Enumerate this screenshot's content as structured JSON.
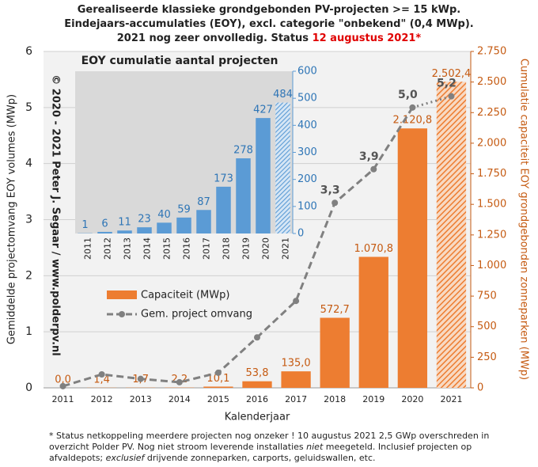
{
  "chart_data": {
    "type": "bar_line",
    "title": [
      "Gerealiseerde klassieke grondgebonden PV-projecten >= 15 kWp.",
      "Eindejaars-accumulaties (EOY), excl. categorie \"onbekend\" (0,4 MWp).",
      "2021 nog zeer onvolledig. Status "
    ],
    "title_highlight": "12 augustus 2021*",
    "title_highlight_color": "#e00000",
    "categories": [
      "2011",
      "2012",
      "2013",
      "2014",
      "2015",
      "2016",
      "2017",
      "2018",
      "2019",
      "2020",
      "2021"
    ],
    "incomplete_last": true,
    "series": [
      {
        "name": "Capaciteit (MWp)",
        "color": "#ed7d31",
        "axis": "y2",
        "kind": "bar",
        "values": [
          0,
          1.4,
          1.7,
          2.2,
          10.1,
          53.8,
          135.0,
          572.7,
          1070.8,
          2120.8,
          2502.4
        ],
        "value_labels": [
          "0,0",
          "1,4",
          "1,7",
          "2,2",
          "10,1",
          "53,8",
          "135,0",
          "572,7",
          "1.070,8",
          "2.120,8",
          "2.502,4"
        ]
      },
      {
        "name": "Gem. project omvang",
        "color": "#808080",
        "kind": "line",
        "values": [
          0.03,
          0.24,
          0.16,
          0.1,
          0.27,
          0.9,
          1.55,
          3.3,
          3.9,
          5.0,
          5.2
        ],
        "value_labels": [
          null,
          null,
          null,
          null,
          null,
          null,
          null,
          "3,3",
          "3,9",
          "5,0",
          "5,2"
        ]
      }
    ],
    "x_label": "Kalenderjaar",
    "y_label": "Gemiddelde projectomvang EOY volumes (MWp)",
    "y2_label": "Cumulatie capaciteit EOY grondgebonden zonneparken (MWp)",
    "ylim": [
      0,
      6
    ],
    "yticks": [
      0,
      1,
      2,
      3,
      4,
      5,
      6
    ],
    "y2lim": [
      0,
      2750
    ],
    "y2ticks": [
      0,
      250,
      500,
      750,
      {
        "value": 1000,
        "label": "1.000"
      },
      {
        "value": 1250,
        "label": "1.250"
      },
      {
        "value": 1500,
        "label": "1.500"
      },
      {
        "value": 1750,
        "label": "1.750"
      },
      {
        "value": 2000,
        "label": "2.000"
      },
      {
        "value": 2250,
        "label": "2.250"
      },
      {
        "value": 2500,
        "label": "2.500"
      },
      {
        "value": 2750,
        "label": "2.750"
      }
    ],
    "grid": true,
    "watermark": "© 2020 - 2021 Peter J. Segaar / www.polderpv.nl",
    "inset": {
      "type": "bar",
      "title": "EOY cumulatie aantal projecten",
      "categories": [
        "2011",
        "2012",
        "2013",
        "2014",
        "2015",
        "2016",
        "2017",
        "2018",
        "2019",
        "2020",
        "2021"
      ],
      "values": [
        1,
        6,
        11,
        23,
        40,
        59,
        87,
        173,
        278,
        427,
        484
      ],
      "color": "#5b9bd5",
      "ylim": [
        0,
        600
      ],
      "yticks": [
        0,
        100,
        200,
        300,
        400,
        500,
        600
      ]
    },
    "footnote": [
      [
        "* Status netkoppeling meerdere projecten nog onzeker ! 10 augustus 2021 2,5 GWp overschreden in"
      ],
      [
        "overzicht Polder PV. Nog niet stroom leverende installaties ",
        "niet",
        " meegeteld. Inclusief projecten op"
      ],
      [
        "afvaldepots; ",
        "exclusief",
        " drijvende zonneparken, carports, geluidswallen, etc."
      ]
    ]
  }
}
